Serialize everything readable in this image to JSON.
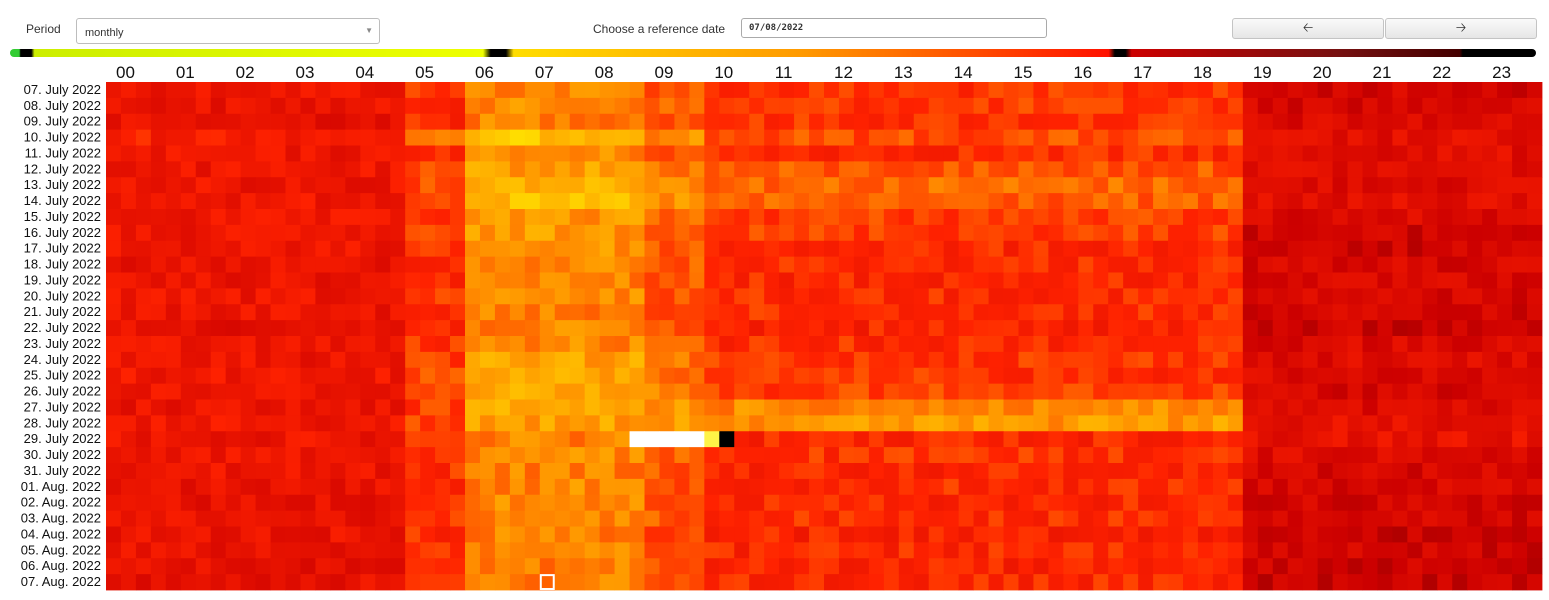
{
  "controls": {
    "period_label": "Period",
    "period_value": "monthly",
    "reference_label": "Choose a reference date",
    "reference_value": "07/08/2022",
    "prev_icon": "arrow-left-icon",
    "next_icon": "arrow-right-icon"
  },
  "chart_data": {
    "type": "heatmap",
    "title": "",
    "xlabel": "",
    "ylabel": "",
    "x_tick_labels": [
      "00",
      "01",
      "02",
      "03",
      "04",
      "05",
      "06",
      "07",
      "08",
      "09",
      "10",
      "11",
      "12",
      "13",
      "14",
      "15",
      "16",
      "17",
      "18",
      "19",
      "20",
      "21",
      "22",
      "23"
    ],
    "y_labels": [
      "07. July 2022",
      "08. July 2022",
      "09. July 2022",
      "10. July 2022",
      "11. July 2022",
      "12. July 2022",
      "13. July 2022",
      "14. July 2022",
      "15. July 2022",
      "16. July 2022",
      "17. July 2022",
      "18. July 2022",
      "19. July 2022",
      "20. July 2022",
      "21. July 2022",
      "22. July 2022",
      "23. July 2022",
      "24. July 2022",
      "25. July 2022",
      "26. July 2022",
      "27. July 2022",
      "28. July 2022",
      "29. July 2022",
      "30. July 2022",
      "31. July 2022",
      "01. Aug. 2022",
      "02. Aug. 2022",
      "03. Aug. 2022",
      "04. Aug. 2022",
      "05. Aug. 2022",
      "06. Aug. 2022",
      "07. Aug. 2022"
    ],
    "cells_per_hour": 4,
    "color_scale": [
      "#ffffff",
      "#ffee00",
      "#ff9900",
      "#ff2200",
      "#cc0000",
      "#660000",
      "#000000"
    ],
    "value_range": [
      0,
      1
    ],
    "rows": [
      {
        "label": "07. July 2022",
        "night": 0.55,
        "morning": 0.36,
        "day": 0.48,
        "evening": 0.64
      },
      {
        "label": "08. July 2022",
        "night": 0.57,
        "morning": 0.36,
        "day": 0.47,
        "evening": 0.63
      },
      {
        "label": "09. July 2022",
        "night": 0.58,
        "morning": 0.37,
        "day": 0.48,
        "evening": 0.62
      },
      {
        "label": "10. July 2022",
        "night": 0.52,
        "morning": 0.25,
        "day": 0.44,
        "evening": 0.6
      },
      {
        "label": "11. July 2022",
        "night": 0.56,
        "morning": 0.36,
        "day": 0.49,
        "evening": 0.6
      },
      {
        "label": "12. July 2022",
        "night": 0.56,
        "morning": 0.32,
        "day": 0.43,
        "evening": 0.6
      },
      {
        "label": "13. July 2022",
        "night": 0.56,
        "morning": 0.28,
        "day": 0.4,
        "evening": 0.61
      },
      {
        "label": "14. July 2022",
        "night": 0.55,
        "morning": 0.27,
        "day": 0.42,
        "evening": 0.6
      },
      {
        "label": "15. July 2022",
        "night": 0.56,
        "morning": 0.34,
        "day": 0.46,
        "evening": 0.62
      },
      {
        "label": "16. July 2022",
        "night": 0.56,
        "morning": 0.33,
        "day": 0.46,
        "evening": 0.65
      },
      {
        "label": "17. July 2022",
        "night": 0.56,
        "morning": 0.34,
        "day": 0.5,
        "evening": 0.66
      },
      {
        "label": "18. July 2022",
        "night": 0.57,
        "morning": 0.36,
        "day": 0.49,
        "evening": 0.63
      },
      {
        "label": "19. July 2022",
        "night": 0.57,
        "morning": 0.37,
        "day": 0.5,
        "evening": 0.63
      },
      {
        "label": "20. July 2022",
        "night": 0.56,
        "morning": 0.36,
        "day": 0.49,
        "evening": 0.63
      },
      {
        "label": "21. July 2022",
        "night": 0.56,
        "morning": 0.38,
        "day": 0.49,
        "evening": 0.64
      },
      {
        "label": "22. July 2022",
        "night": 0.58,
        "morning": 0.37,
        "day": 0.51,
        "evening": 0.66
      },
      {
        "label": "23. July 2022",
        "night": 0.56,
        "morning": 0.36,
        "day": 0.49,
        "evening": 0.62
      },
      {
        "label": "24. July 2022",
        "night": 0.56,
        "morning": 0.32,
        "day": 0.47,
        "evening": 0.61
      },
      {
        "label": "25. July 2022",
        "night": 0.55,
        "morning": 0.31,
        "day": 0.48,
        "evening": 0.62
      },
      {
        "label": "26. July 2022",
        "night": 0.56,
        "morning": 0.3,
        "day": 0.46,
        "evening": 0.63
      },
      {
        "label": "27. July 2022",
        "night": 0.57,
        "morning": 0.31,
        "day": 0.36,
        "evening": 0.62
      },
      {
        "label": "28. July 2022",
        "night": 0.55,
        "morning": 0.32,
        "day": 0.33,
        "evening": 0.58
      },
      {
        "label": "29. July 2022",
        "night": 0.56,
        "morning": 0.37,
        "day": 0.5,
        "evening": 0.58
      },
      {
        "label": "30. July 2022",
        "night": 0.55,
        "morning": 0.36,
        "day": 0.48,
        "evening": 0.61
      },
      {
        "label": "31. July 2022",
        "night": 0.56,
        "morning": 0.37,
        "day": 0.5,
        "evening": 0.63
      },
      {
        "label": "01. Aug. 2022",
        "night": 0.57,
        "morning": 0.36,
        "day": 0.49,
        "evening": 0.63
      },
      {
        "label": "02. Aug. 2022",
        "night": 0.58,
        "morning": 0.36,
        "day": 0.5,
        "evening": 0.64
      },
      {
        "label": "03. Aug. 2022",
        "night": 0.57,
        "morning": 0.36,
        "day": 0.49,
        "evening": 0.64
      },
      {
        "label": "04. Aug. 2022",
        "night": 0.57,
        "morning": 0.37,
        "day": 0.51,
        "evening": 0.66
      },
      {
        "label": "05. Aug. 2022",
        "night": 0.57,
        "morning": 0.36,
        "day": 0.5,
        "evening": 0.65
      },
      {
        "label": "06. Aug. 2022",
        "night": 0.58,
        "morning": 0.37,
        "day": 0.51,
        "evening": 0.66
      },
      {
        "label": "07. Aug. 2022",
        "night": 0.58,
        "morning": 0.37,
        "day": 0.5,
        "evening": 0.67
      }
    ],
    "special_cells": [
      {
        "row": "29. July 2022",
        "hour_start": 8.75,
        "hour_end": 10.0,
        "value": 0.0
      },
      {
        "row": "29. July 2022",
        "hour_start": 10.0,
        "hour_end": 10.25,
        "value": 0.12
      },
      {
        "row": "29. July 2022",
        "hour_start": 10.25,
        "hour_end": 10.5,
        "value": 1.0
      }
    ],
    "selected_cell": {
      "row": "07. Aug. 2022",
      "hour": 7.25
    },
    "legend": {
      "type": "color-bar",
      "position": "top"
    }
  }
}
